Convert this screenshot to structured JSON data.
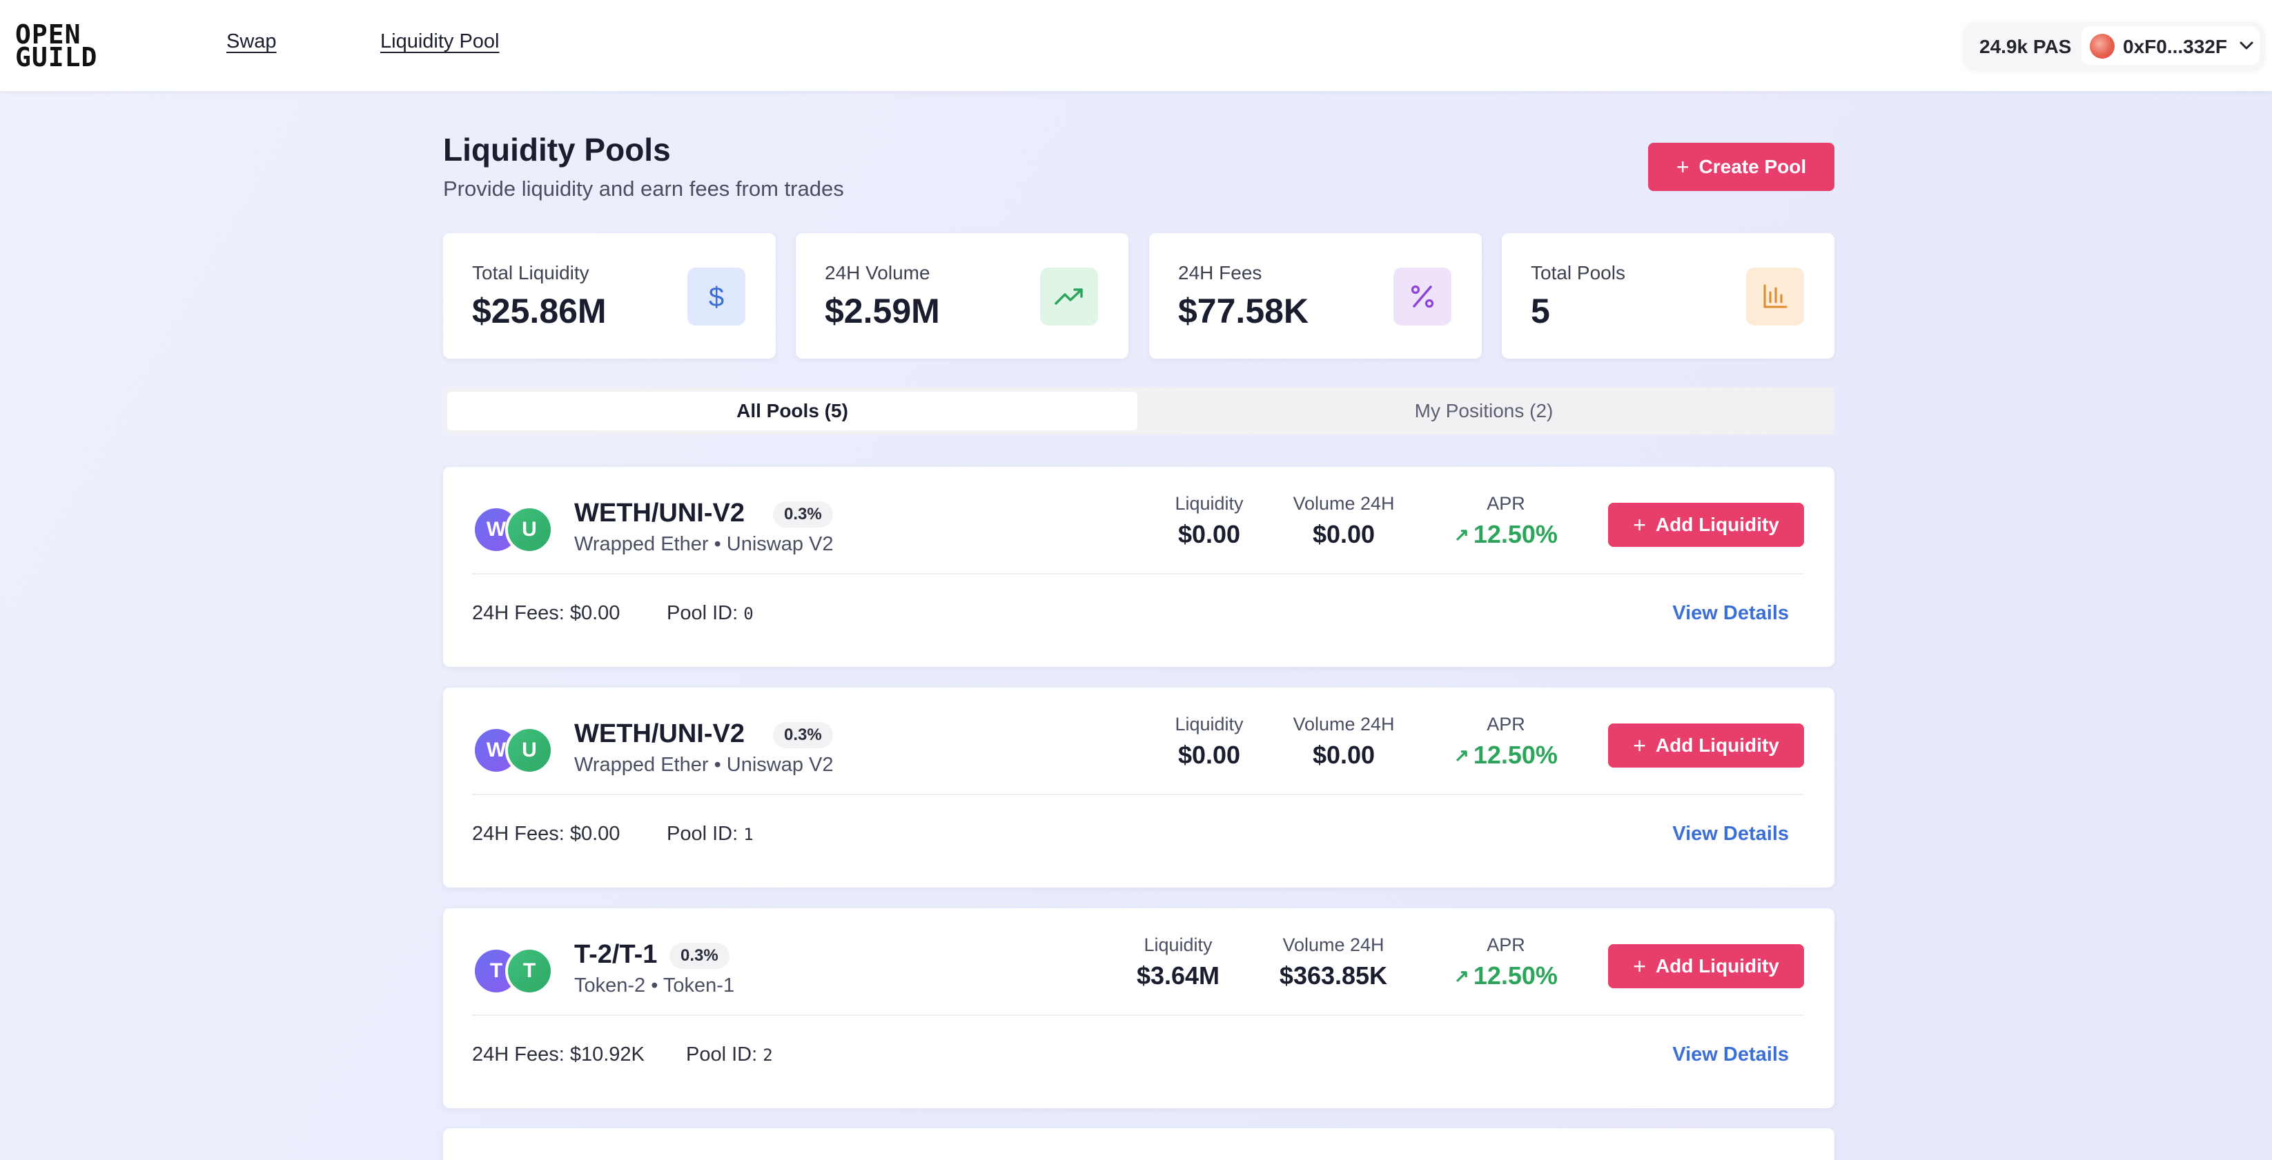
{
  "header": {
    "logo_line1": "OPEN",
    "logo_line2": "GUILD",
    "nav": [
      "Swap",
      "Liquidity Pool"
    ],
    "balance": "24.9k PAS",
    "account_address": "0xF0...332F",
    "account_chevron_icon": "chevron-down-icon"
  },
  "page": {
    "title": "Liquidity Pools",
    "subtitle": "Provide liquidity and earn fees from trades",
    "create_button": "Create Pool",
    "create_button_icon": "plus-icon"
  },
  "stats": [
    {
      "label": "Total Liquidity",
      "value": "$25.86M",
      "icon": "dollar-icon",
      "icon_symbol": "$",
      "color": "#3b6fd6"
    },
    {
      "label": "24H Volume",
      "value": "$2.59M",
      "icon": "trending-up-icon",
      "icon_symbol": "↗",
      "color": "#2ca55a"
    },
    {
      "label": "24H Fees",
      "value": "$77.58K",
      "icon": "percent-icon",
      "icon_symbol": "%",
      "color": "#8e44d8"
    },
    {
      "label": "Total Pools",
      "value": "5",
      "icon": "bar-chart-icon",
      "icon_symbol": "📊",
      "color": "#e08a2e"
    }
  ],
  "tabs": [
    {
      "label": "All Pools (5)",
      "active": true
    },
    {
      "label": "My Positions (2)",
      "active": false
    }
  ],
  "pool_labels": {
    "liquidity": "Liquidity",
    "volume": "Volume 24H",
    "apr": "APR",
    "add_liquidity": "Add Liquidity",
    "fees_prefix": "24H Fees:",
    "pool_id_prefix": "Pool ID:",
    "view_details": "View Details",
    "apr_arrow": "↗"
  },
  "pools": [
    {
      "token_a_initial": "W",
      "token_b_initial": "U",
      "pair": "WETH/UNI-V2",
      "fee_tier": "0.3%",
      "description": "Wrapped Ether • Uniswap V2",
      "liquidity": "$0.00",
      "volume_24h": "$0.00",
      "apr": "12.50%",
      "fees_24h": "$0.00",
      "pool_id": "0"
    },
    {
      "token_a_initial": "W",
      "token_b_initial": "U",
      "pair": "WETH/UNI-V2",
      "fee_tier": "0.3%",
      "description": "Wrapped Ether • Uniswap V2",
      "liquidity": "$0.00",
      "volume_24h": "$0.00",
      "apr": "12.50%",
      "fees_24h": "$0.00",
      "pool_id": "1"
    },
    {
      "token_a_initial": "T",
      "token_b_initial": "T",
      "pair": "T-2/T-1",
      "fee_tier": "0.3%",
      "description": "Token-2 • Token-1",
      "liquidity": "$3.64M",
      "volume_24h": "$363.85K",
      "apr": "12.50%",
      "fees_24h": "$10.92K",
      "pool_id": "2"
    }
  ],
  "colors": {
    "accent": "#e83e6c",
    "link": "#3b6fd6",
    "apr_green": "#2ca55a"
  }
}
